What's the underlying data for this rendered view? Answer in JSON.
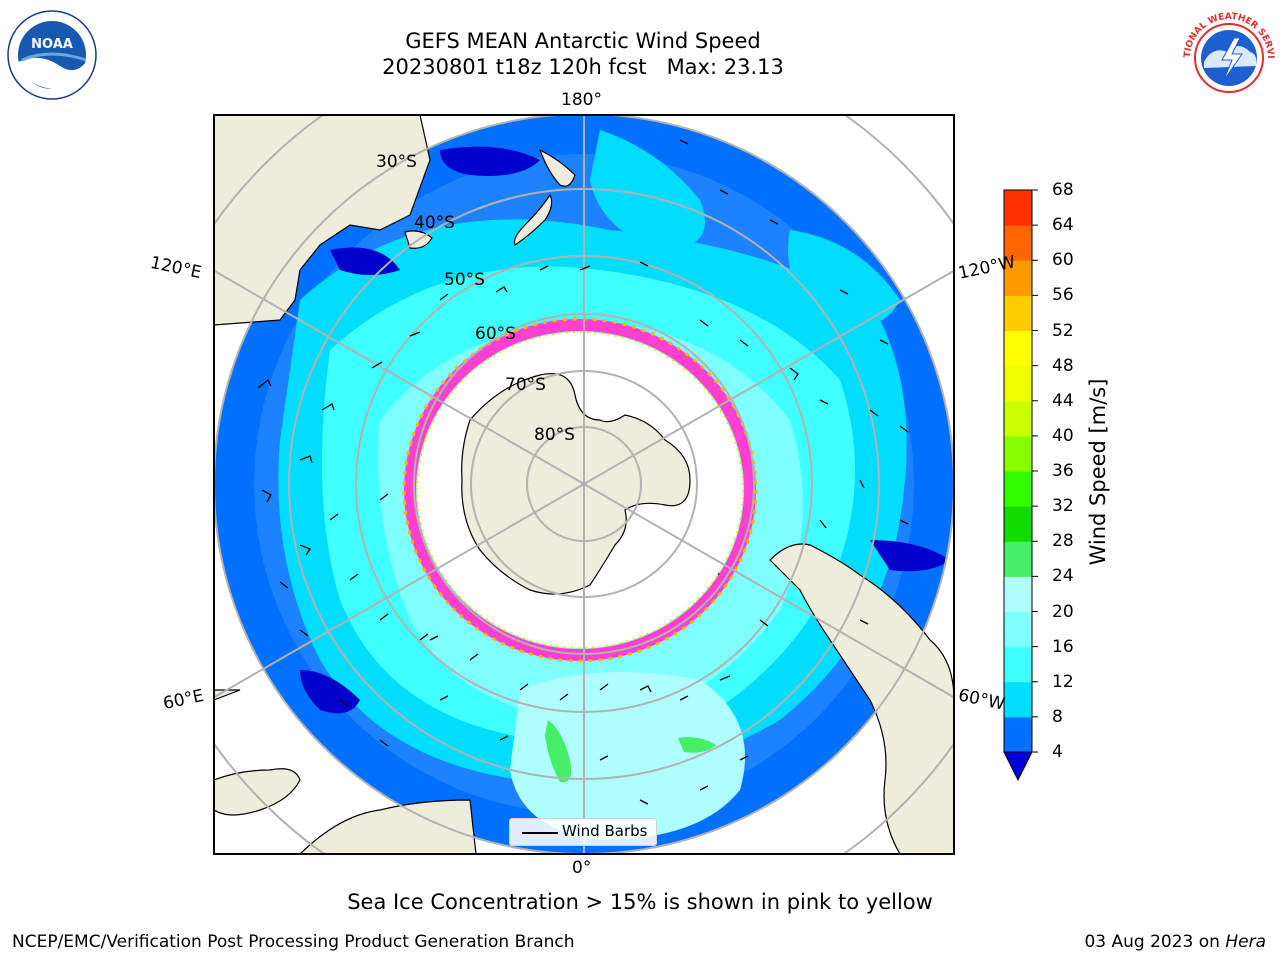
{
  "header": {
    "title_line1": "GEFS MEAN Antarctic Wind Speed",
    "title_line2": "20230801 t18z 120h fcst   Max: 23.13"
  },
  "logos": {
    "noaa_text": "NOAA",
    "nws_text": "NATIONAL WEATHER SERVICE"
  },
  "map": {
    "longitude_labels": [
      "180°",
      "120°E",
      "120°W",
      "60°E",
      "60°W",
      "0°"
    ],
    "latitude_labels": [
      "30°S",
      "40°S",
      "50°S",
      "60°S",
      "70°S",
      "80°S"
    ],
    "legend_label": "Wind Barbs",
    "colors": {
      "land": "#eeecda",
      "sea_ice": "#ffffff",
      "ice_edge": [
        "#ff3fd0",
        "#ffb400",
        "#ffe000"
      ],
      "grid": "#b2b2b2"
    }
  },
  "colorbar": {
    "title": "Wind Speed [m/s]",
    "ticks": [
      "4",
      "8",
      "12",
      "16",
      "20",
      "24",
      "28",
      "32",
      "36",
      "40",
      "44",
      "48",
      "52",
      "56",
      "60",
      "64",
      "68"
    ],
    "colors": [
      "#0070ff",
      "#00ddff",
      "#40ffff",
      "#7fffff",
      "#afffff",
      "#44ee66",
      "#11dd00",
      "#33ff00",
      "#88ff00",
      "#ccff00",
      "#eeff00",
      "#ffff00",
      "#ffcc00",
      "#ff9900",
      "#ff6600",
      "#ff3300",
      "#ff0000"
    ],
    "extend_color": "#0000dd"
  },
  "annotation": "Sea Ice Concentration > 15% is shown in pink to yellow",
  "footer": {
    "left": "NCEP/EMC/Verification Post Processing Product Generation Branch",
    "right_date": "03 Aug 2023 on ",
    "right_host": "Hera"
  }
}
